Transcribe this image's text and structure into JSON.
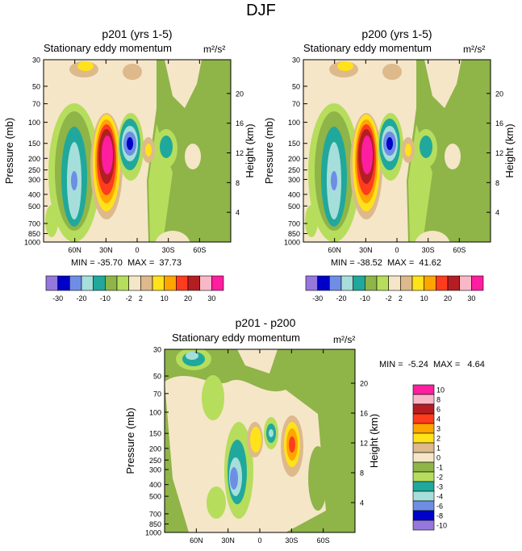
{
  "figure": {
    "title": "DJF",
    "units_label": "m²/s²",
    "subtitle": "Stationary eddy momentum",
    "colors": {
      "bg": "#F5E6C8",
      "green": "#8FB448",
      "lightgreen": "#B6DD5C",
      "teal": "#20A89C",
      "paleteal": "#A6DEDB",
      "cornflower": "#6E8EE6",
      "blue": "#0000C8",
      "tan": "#DDB98C",
      "yellow": "#FFE21A",
      "orange": "#FFA500",
      "redorange": "#FF3C1E",
      "darkred": "#B41E23",
      "pink": "#F8B8C8",
      "magenta": "#FF1EA0",
      "lavender": "#9678DC"
    }
  },
  "chart_data": [
    {
      "type": "heatmap",
      "title": "p201 (yrs 1-5)",
      "subtitle": "Stationary eddy momentum",
      "units": "m²/s²",
      "xlabel": "",
      "ylabel": "Pressure (mb)",
      "y2label": "Height (km)",
      "x_ticks": [
        "60N",
        "30N",
        "0",
        "30S",
        "60S"
      ],
      "x_tick_values": [
        60,
        30,
        0,
        -30,
        -60
      ],
      "xlim": [
        90,
        -90
      ],
      "y_ticks": [
        30,
        50,
        70,
        100,
        150,
        200,
        250,
        300,
        400,
        500,
        700,
        850,
        1000
      ],
      "ylim": [
        30,
        1000
      ],
      "y2_ticks": [
        4,
        8,
        12,
        16,
        20
      ],
      "min": -35.7,
      "max": 37.73,
      "min_max_text": "MIN = -35.70  MAX =  37.73",
      "colorbar_labels": [
        "-30",
        "-20",
        "-10",
        "-2",
        "2",
        "10",
        "20",
        "30"
      ]
    },
    {
      "type": "heatmap",
      "title": "p200 (yrs 1-5)",
      "subtitle": "Stationary eddy momentum",
      "units": "m²/s²",
      "xlabel": "",
      "ylabel": "Pressure (mb)",
      "y2label": "Height (km)",
      "x_ticks": [
        "60N",
        "30N",
        "0",
        "30S",
        "60S"
      ],
      "x_tick_values": [
        60,
        30,
        0,
        -30,
        -60
      ],
      "xlim": [
        90,
        -90
      ],
      "y_ticks": [
        30,
        50,
        70,
        100,
        150,
        200,
        250,
        300,
        400,
        500,
        700,
        850,
        1000
      ],
      "ylim": [
        30,
        1000
      ],
      "y2_ticks": [
        4,
        8,
        12,
        16,
        20
      ],
      "min": -38.52,
      "max": 41.62,
      "min_max_text": "MIN = -38.52  MAX =  41.62",
      "colorbar_labels": [
        "-30",
        "-20",
        "-10",
        "-2",
        "2",
        "10",
        "20",
        "30"
      ]
    },
    {
      "type": "heatmap",
      "title": "p201 - p200",
      "subtitle": "Stationary eddy momentum",
      "units": "m²/s²",
      "xlabel": "",
      "ylabel": "Pressure (mb)",
      "y2label": "Height (km)",
      "x_ticks": [
        "60N",
        "30N",
        "0",
        "30S",
        "60S"
      ],
      "x_tick_values": [
        60,
        30,
        0,
        -30,
        -60
      ],
      "xlim": [
        90,
        -90
      ],
      "y_ticks": [
        30,
        50,
        70,
        100,
        150,
        200,
        250,
        300,
        400,
        500,
        700,
        850,
        1000
      ],
      "ylim": [
        30,
        1000
      ],
      "y2_ticks": [
        4,
        8,
        12,
        16,
        20
      ],
      "min": -5.24,
      "max": 4.64,
      "min_max_text": "MIN =  -5.24  MAX =   4.64",
      "colorbar_labels": [
        "10",
        "8",
        "6",
        "4",
        "3",
        "2",
        "1",
        "0",
        "-1",
        "-2",
        "-3",
        "-4",
        "-6",
        "-8",
        "-10"
      ]
    }
  ]
}
